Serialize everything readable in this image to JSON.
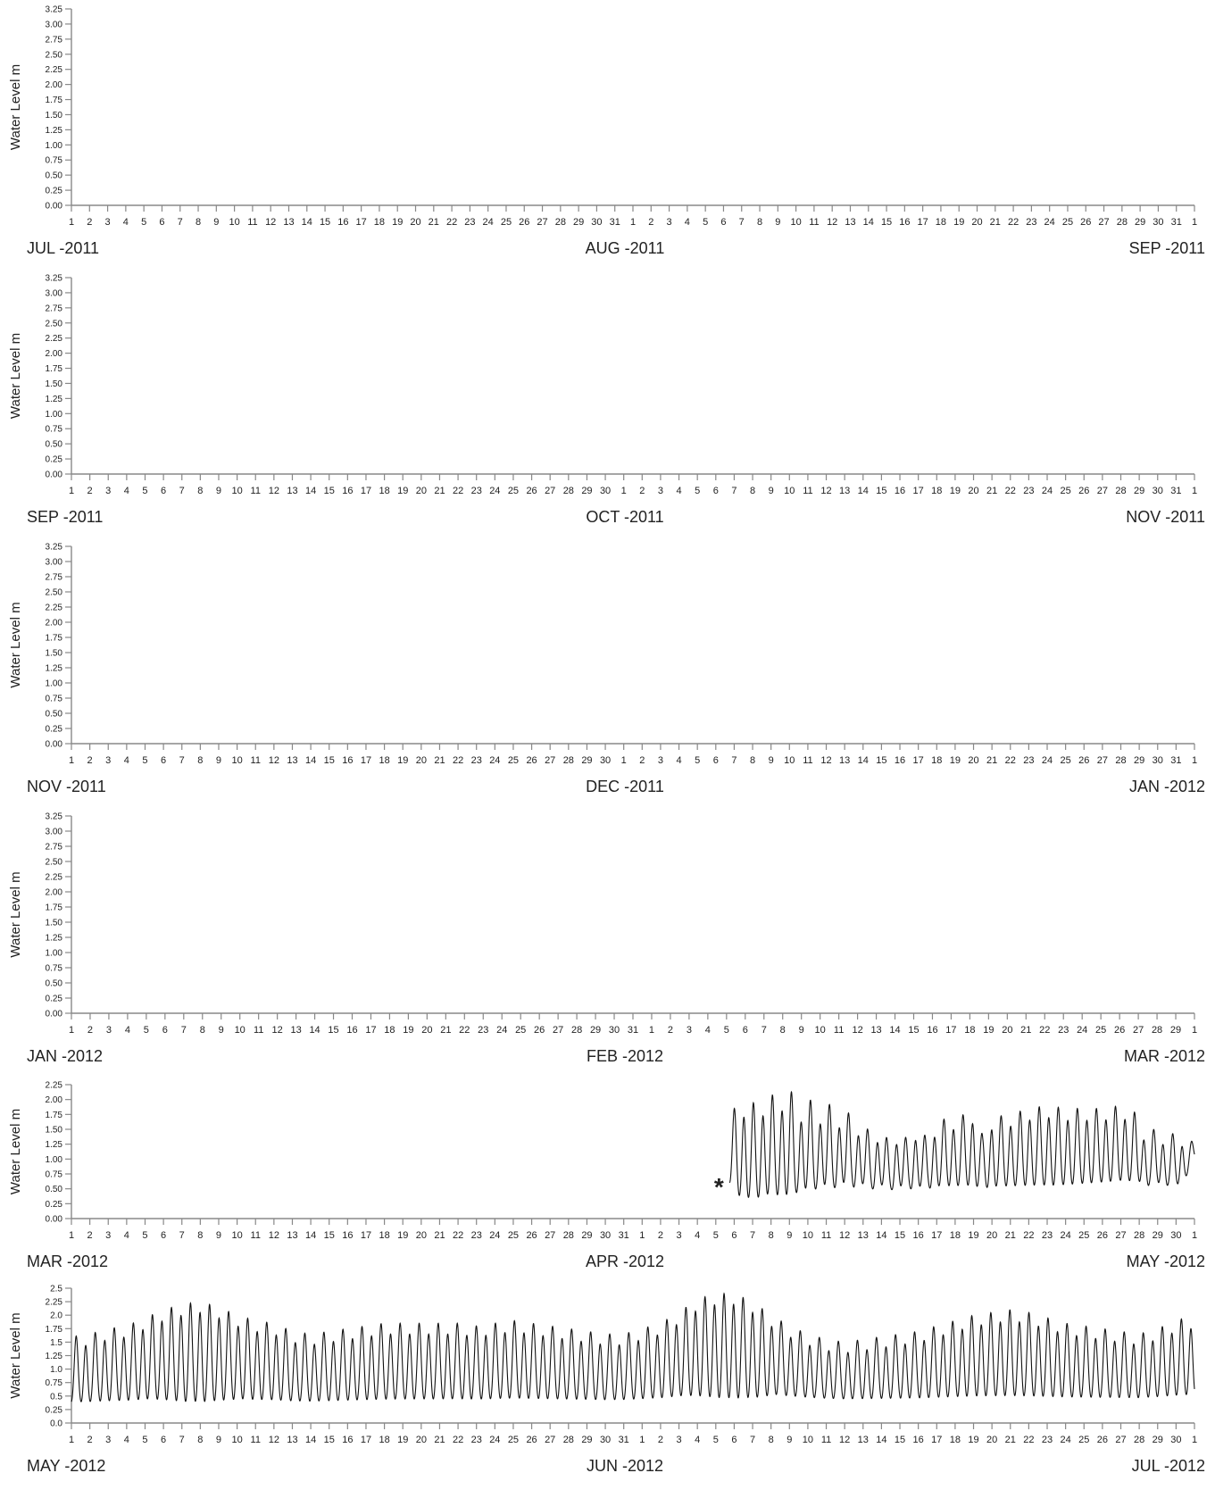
{
  "chart_data": [
    {
      "type": "line",
      "ylabel": "Water Level  m",
      "ylim": [
        0,
        3.25
      ],
      "y_ticks": [
        "0.00",
        "0.25",
        "0.50",
        "0.75",
        "1.00",
        "1.25",
        "1.50",
        "1.75",
        "2.00",
        "2.25",
        "2.50",
        "2.75",
        "3.00",
        "3.25"
      ],
      "x_tick_labels": [
        "1",
        "2",
        "3",
        "4",
        "5",
        "6",
        "7",
        "8",
        "9",
        "10",
        "11",
        "12",
        "13",
        "14",
        "15",
        "16",
        "17",
        "18",
        "19",
        "20",
        "21",
        "22",
        "23",
        "24",
        "25",
        "26",
        "27",
        "28",
        "29",
        "30",
        "31",
        "1",
        "2",
        "3",
        "4",
        "5",
        "6",
        "7",
        "8",
        "9",
        "10",
        "11",
        "12",
        "13",
        "14",
        "15",
        "16",
        "17",
        "18",
        "19",
        "20",
        "21",
        "22",
        "23",
        "24",
        "25",
        "26",
        "27",
        "28",
        "29",
        "30",
        "31",
        "1"
      ],
      "month_labels": [
        "JUL -2011",
        "AUG -2011",
        "SEP -2011"
      ],
      "x_range": [
        "2011-07-01",
        "2011-09-01"
      ],
      "series": []
    },
    {
      "type": "line",
      "ylabel": "Water Level  m",
      "ylim": [
        0,
        3.25
      ],
      "y_ticks": [
        "0.00",
        "0.25",
        "0.50",
        "0.75",
        "1.00",
        "1.25",
        "1.50",
        "1.75",
        "2.00",
        "2.25",
        "2.50",
        "2.75",
        "3.00",
        "3.25"
      ],
      "x_tick_labels": [
        "1",
        "2",
        "3",
        "4",
        "5",
        "6",
        "7",
        "8",
        "9",
        "10",
        "11",
        "12",
        "13",
        "14",
        "15",
        "16",
        "17",
        "18",
        "19",
        "20",
        "21",
        "22",
        "23",
        "24",
        "25",
        "26",
        "27",
        "28",
        "29",
        "30",
        "1",
        "2",
        "3",
        "4",
        "5",
        "6",
        "7",
        "8",
        "9",
        "10",
        "11",
        "12",
        "13",
        "14",
        "15",
        "16",
        "17",
        "18",
        "19",
        "20",
        "21",
        "22",
        "23",
        "24",
        "25",
        "26",
        "27",
        "28",
        "29",
        "30",
        "31",
        "1"
      ],
      "month_labels": [
        "SEP -2011",
        "OCT -2011",
        "NOV -2011"
      ],
      "x_range": [
        "2011-09-01",
        "2011-11-01"
      ],
      "series": []
    },
    {
      "type": "line",
      "ylabel": "Water Level  m",
      "ylim": [
        0,
        3.25
      ],
      "y_ticks": [
        "0.00",
        "0.25",
        "0.50",
        "0.75",
        "1.00",
        "1.25",
        "1.50",
        "1.75",
        "2.00",
        "2.25",
        "2.50",
        "2.75",
        "3.00",
        "3.25"
      ],
      "x_tick_labels": [
        "1",
        "2",
        "3",
        "4",
        "5",
        "6",
        "7",
        "8",
        "9",
        "10",
        "11",
        "12",
        "13",
        "14",
        "15",
        "16",
        "17",
        "18",
        "19",
        "20",
        "21",
        "22",
        "23",
        "24",
        "25",
        "26",
        "27",
        "28",
        "29",
        "30",
        "1",
        "2",
        "3",
        "4",
        "5",
        "6",
        "7",
        "8",
        "9",
        "10",
        "11",
        "12",
        "13",
        "14",
        "15",
        "16",
        "17",
        "18",
        "19",
        "20",
        "21",
        "22",
        "23",
        "24",
        "25",
        "26",
        "27",
        "28",
        "29",
        "30",
        "31",
        "1"
      ],
      "month_labels": [
        "NOV -2011",
        "DEC -2011",
        "JAN -2012"
      ],
      "x_range": [
        "2011-11-01",
        "2012-01-01"
      ],
      "series": []
    },
    {
      "type": "line",
      "ylabel": "Water Level  m",
      "ylim": [
        0,
        3.25
      ],
      "y_ticks": [
        "0.00",
        "0.25",
        "0.50",
        "0.75",
        "1.00",
        "1.25",
        "1.50",
        "1.75",
        "2.00",
        "2.25",
        "2.50",
        "2.75",
        "3.00",
        "3.25"
      ],
      "x_tick_labels": [
        "1",
        "2",
        "3",
        "4",
        "5",
        "6",
        "7",
        "8",
        "9",
        "10",
        "11",
        "12",
        "13",
        "14",
        "15",
        "16",
        "17",
        "18",
        "19",
        "20",
        "21",
        "22",
        "23",
        "24",
        "25",
        "26",
        "27",
        "28",
        "29",
        "30",
        "31",
        "1",
        "2",
        "3",
        "4",
        "5",
        "6",
        "7",
        "8",
        "9",
        "10",
        "11",
        "12",
        "13",
        "14",
        "15",
        "16",
        "17",
        "18",
        "19",
        "20",
        "21",
        "22",
        "23",
        "24",
        "25",
        "26",
        "27",
        "28",
        "29",
        "1"
      ],
      "month_labels": [
        "JAN -2012",
        "FEB -2012",
        "MAR -2012"
      ],
      "x_range": [
        "2012-01-01",
        "2012-03-01"
      ],
      "series": []
    },
    {
      "type": "line",
      "ylabel": "Water Level  m",
      "ylim": [
        0,
        2.25
      ],
      "y_ticks": [
        "0.00",
        "0.25",
        "0.50",
        "0.75",
        "1.00",
        "1.25",
        "1.50",
        "1.75",
        "2.00",
        "2.25"
      ],
      "x_tick_labels": [
        "1",
        "2",
        "3",
        "4",
        "5",
        "6",
        "7",
        "8",
        "9",
        "10",
        "11",
        "12",
        "13",
        "14",
        "15",
        "16",
        "17",
        "18",
        "19",
        "20",
        "21",
        "22",
        "23",
        "24",
        "25",
        "26",
        "27",
        "28",
        "29",
        "30",
        "31",
        "1",
        "2",
        "3",
        "4",
        "5",
        "6",
        "7",
        "8",
        "9",
        "10",
        "11",
        "12",
        "13",
        "14",
        "15",
        "16",
        "17",
        "18",
        "19",
        "20",
        "21",
        "22",
        "23",
        "24",
        "25",
        "26",
        "27",
        "28",
        "29",
        "30",
        "1"
      ],
      "month_labels": [
        "MAR -2012",
        "APR -2012",
        "MAY -2012"
      ],
      "x_range": [
        "2012-03-01",
        "2012-05-01"
      ],
      "annotation": {
        "text": "*",
        "at": "2012-04-05T18:00"
      },
      "series": [
        {
          "tide_from": "2012-04-05T18:00",
          "tide_to": "2012-05-01T00:00",
          "period_hours": 12.42,
          "points": [
            [
              "2012-04-05T18:00",
              0.4
            ],
            [
              "2012-04-06T00:00",
              1.75
            ],
            [
              "2012-04-06T06:00",
              0.15
            ],
            [
              "2012-04-06T12:00",
              1.8
            ],
            [
              "2012-04-06T18:00",
              0.1
            ],
            [
              "2012-04-07T00:00",
              1.85
            ],
            [
              "2012-04-07T06:00",
              0.1
            ],
            [
              "2012-04-07T12:00",
              1.8
            ],
            [
              "2012-04-07T18:00",
              0.15
            ],
            [
              "2012-04-08T00:00",
              2.0
            ],
            [
              "2012-04-08T06:00",
              0.15
            ],
            [
              "2012-04-08T12:00",
              1.85
            ],
            [
              "2012-04-08T18:00",
              0.1
            ],
            [
              "2012-04-09T00:00",
              2.15
            ],
            [
              "2012-04-09T06:00",
              0.2
            ],
            [
              "2012-04-09T12:00",
              1.6
            ],
            [
              "2012-04-09T18:00",
              0.25
            ],
            [
              "2012-04-10T00:00",
              2.05
            ],
            [
              "2012-04-10T06:00",
              0.3
            ],
            [
              "2012-04-10T12:00",
              1.5
            ],
            [
              "2012-04-11T00:00",
              2.05
            ],
            [
              "2012-04-11T06:00",
              0.35
            ],
            [
              "2012-04-11T12:00",
              1.4
            ],
            [
              "2012-04-12T00:00",
              1.95
            ],
            [
              "2012-04-12T06:00",
              0.4
            ],
            [
              "2012-04-12T12:00",
              1.3
            ],
            [
              "2012-04-13T00:00",
              1.7
            ],
            [
              "2012-04-13T12:00",
              1.1
            ],
            [
              "2012-04-14T00:00",
              1.6
            ],
            [
              "2012-04-14T12:00",
              1.0
            ],
            [
              "2012-04-15T00:00",
              1.55
            ],
            [
              "2012-04-15T12:00",
              1.1
            ],
            [
              "2012-04-16T00:00",
              1.55
            ],
            [
              "2012-04-16T12:00",
              1.2
            ],
            [
              "2012-04-17T00:00",
              1.55
            ],
            [
              "2012-04-18T00:00",
              1.6
            ],
            [
              "2012-04-19T00:00",
              1.7
            ],
            [
              "2012-04-19T12:00",
              1.3
            ],
            [
              "2012-04-20T00:00",
              1.6
            ],
            [
              "2012-04-21T00:00",
              1.65
            ],
            [
              "2012-04-22T00:00",
              1.75
            ],
            [
              "2012-04-23T00:00",
              1.8
            ],
            [
              "2012-04-23T06:00",
              0.35
            ],
            [
              "2012-04-24T00:00",
              1.75
            ],
            [
              "2012-04-25T00:00",
              1.75
            ],
            [
              "2012-04-25T06:00",
              0.4
            ],
            [
              "2012-04-26T00:00",
              1.75
            ],
            [
              "2012-04-27T00:00",
              1.8
            ],
            [
              "2012-04-27T06:00",
              0.45
            ],
            [
              "2012-04-28T00:00",
              1.65
            ],
            [
              "2012-04-28T12:00",
              1.2
            ],
            [
              "2012-04-29T00:00",
              1.55
            ],
            [
              "2012-04-29T12:00",
              1.2
            ],
            [
              "2012-04-30T00:00",
              1.4
            ],
            [
              "2012-04-30T06:00",
              0.45
            ],
            [
              "2012-04-30T18:00",
              1.2
            ],
            [
              "2012-05-01T00:00",
              0.9
            ]
          ]
        }
      ]
    },
    {
      "type": "line",
      "ylabel": "Water Level  m",
      "ylim": [
        0,
        2.5
      ],
      "y_ticks": [
        "0.0",
        "0.25",
        "0.5",
        "0.75",
        "1.0",
        "1.25",
        "1.5",
        "1.75",
        "2.0",
        "2.25",
        "2.5"
      ],
      "x_tick_labels": [
        "1",
        "2",
        "3",
        "4",
        "5",
        "6",
        "7",
        "8",
        "9",
        "10",
        "11",
        "12",
        "13",
        "14",
        "15",
        "16",
        "17",
        "18",
        "19",
        "20",
        "21",
        "22",
        "23",
        "24",
        "25",
        "26",
        "27",
        "28",
        "29",
        "30",
        "31",
        "1",
        "2",
        "3",
        "4",
        "5",
        "6",
        "7",
        "8",
        "9",
        "10",
        "11",
        "12",
        "13",
        "14",
        "15",
        "16",
        "17",
        "18",
        "19",
        "20",
        "21",
        "22",
        "23",
        "24",
        "25",
        "26",
        "27",
        "28",
        "29",
        "30",
        "1"
      ],
      "month_labels": [
        "MAY -2012",
        "JUN -2012",
        "JUL -2012"
      ],
      "x_range": [
        "2012-05-01",
        "2012-07-01"
      ],
      "series": [
        {
          "tide_from": "2012-05-01T00:00",
          "tide_to": "2012-07-01T00:00",
          "period_hours": 12.42,
          "points": [
            [
              "2012-05-01T00:00",
              1.5
            ],
            [
              "2012-05-02T00:00",
              1.55
            ],
            [
              "2012-05-03T00:00",
              1.65
            ],
            [
              "2012-05-04T00:00",
              1.7
            ],
            [
              "2012-05-05T00:00",
              1.85
            ],
            [
              "2012-05-05T06:00",
              0.2
            ],
            [
              "2012-05-06T00:00",
              2.0
            ],
            [
              "2012-05-06T06:00",
              0.15
            ],
            [
              "2012-05-07T00:00",
              2.1
            ],
            [
              "2012-05-07T06:00",
              0.1
            ],
            [
              "2012-05-08T00:00",
              2.15
            ],
            [
              "2012-05-08T06:00",
              0.1
            ],
            [
              "2012-05-09T00:00",
              2.05
            ],
            [
              "2012-05-09T06:00",
              0.15
            ],
            [
              "2012-05-10T00:00",
              1.9
            ],
            [
              "2012-05-10T06:00",
              0.2
            ],
            [
              "2012-05-11T00:00",
              1.8
            ],
            [
              "2012-05-12T00:00",
              1.75
            ],
            [
              "2012-05-13T00:00",
              1.6
            ],
            [
              "2012-05-14T00:00",
              1.55
            ],
            [
              "2012-05-15T00:00",
              1.6
            ],
            [
              "2012-05-16T00:00",
              1.65
            ],
            [
              "2012-05-17T00:00",
              1.7
            ],
            [
              "2012-05-18T00:00",
              1.75
            ],
            [
              "2012-05-19T00:00",
              1.75
            ],
            [
              "2012-05-20T00:00",
              1.75
            ],
            [
              "2012-05-21T00:00",
              1.75
            ],
            [
              "2012-05-22T00:00",
              1.75
            ],
            [
              "2012-05-23T00:00",
              1.7
            ],
            [
              "2012-05-24T00:00",
              1.75
            ],
            [
              "2012-05-25T00:00",
              1.8
            ],
            [
              "2012-05-26T00:00",
              1.75
            ],
            [
              "2012-05-27T00:00",
              1.7
            ],
            [
              "2012-05-28T00:00",
              1.65
            ],
            [
              "2012-05-29T00:00",
              1.6
            ],
            [
              "2012-05-30T00:00",
              1.55
            ],
            [
              "2012-05-31T00:00",
              1.55
            ],
            [
              "2012-06-01T00:00",
              1.65
            ],
            [
              "2012-06-02T00:00",
              1.75
            ],
            [
              "2012-06-03T00:00",
              1.95
            ],
            [
              "2012-06-03T06:00",
              0.25
            ],
            [
              "2012-06-04T00:00",
              2.2
            ],
            [
              "2012-06-04T06:00",
              0.2
            ],
            [
              "2012-06-05T00:00",
              2.3
            ],
            [
              "2012-06-05T06:00",
              0.15
            ],
            [
              "2012-06-06T00:00",
              2.3
            ],
            [
              "2012-06-06T06:00",
              0.15
            ],
            [
              "2012-06-07T00:00",
              2.15
            ],
            [
              "2012-06-07T06:00",
              0.2
            ],
            [
              "2012-06-08T00:00",
              1.9
            ],
            [
              "2012-06-08T06:00",
              0.3
            ],
            [
              "2012-06-09T00:00",
              1.7
            ],
            [
              "2012-06-10T00:00",
              1.55
            ],
            [
              "2012-06-11T00:00",
              1.45
            ],
            [
              "2012-06-12T00:00",
              1.4
            ],
            [
              "2012-06-13T00:00",
              1.45
            ],
            [
              "2012-06-14T00:00",
              1.5
            ],
            [
              "2012-06-15T00:00",
              1.55
            ],
            [
              "2012-06-16T00:00",
              1.6
            ],
            [
              "2012-06-17T00:00",
              1.7
            ],
            [
              "2012-06-18T00:00",
              1.8
            ],
            [
              "2012-06-19T00:00",
              1.9
            ],
            [
              "2012-06-20T00:00",
              1.95
            ],
            [
              "2012-06-21T00:00",
              2.0
            ],
            [
              "2012-06-21T06:00",
              0.25
            ],
            [
              "2012-06-22T00:00",
              1.95
            ],
            [
              "2012-06-23T00:00",
              1.85
            ],
            [
              "2012-06-24T00:00",
              1.75
            ],
            [
              "2012-06-25T00:00",
              1.7
            ],
            [
              "2012-06-26T00:00",
              1.65
            ],
            [
              "2012-06-27T00:00",
              1.6
            ],
            [
              "2012-06-28T00:00",
              1.55
            ],
            [
              "2012-06-29T00:00",
              1.65
            ],
            [
              "2012-06-30T00:00",
              1.8
            ],
            [
              "2012-06-30T12:00",
              1.85
            ],
            [
              "2012-07-01T00:00",
              0.3
            ]
          ]
        }
      ]
    }
  ]
}
